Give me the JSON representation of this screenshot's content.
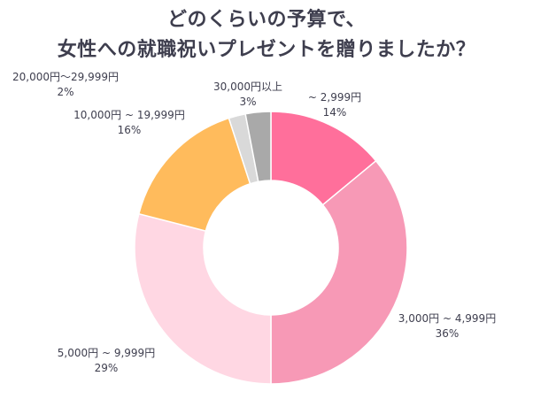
{
  "title_lines": [
    "どのくらいの予算で、",
    "女性への就職祝いプレゼントを贈りましたか？"
  ],
  "chart_data": {
    "type": "pie",
    "donut": true,
    "categories": [
      "~ 2,999円",
      "3,000円 ~ 4,999円",
      "5,000円 ~ 9,999円",
      "10,000円 ~ 19,999円",
      "20,000円〜29,999円",
      "30,000円以上"
    ],
    "values": [
      14,
      36,
      29,
      16,
      2,
      3
    ],
    "value_labels": [
      "14%",
      "36%",
      "29%",
      "16%",
      "2%",
      "3%"
    ],
    "colors": [
      "#ff6f9b",
      "#f799b6",
      "#ffd7e3",
      "#ffbb5c",
      "#d9d9d9",
      "#a9a9a9"
    ]
  }
}
